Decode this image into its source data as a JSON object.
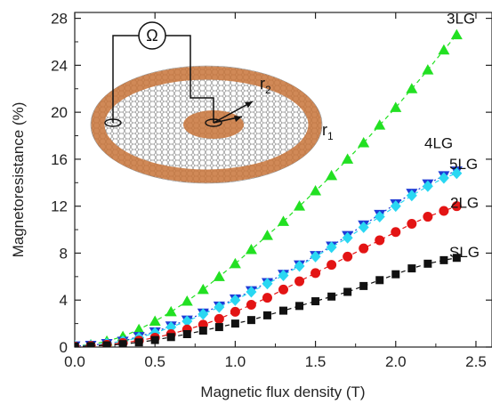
{
  "chart_data": {
    "type": "scatter",
    "xlabel": "Magnetic flux density (T)",
    "ylabel": "Magnetoresistance (%)",
    "xlim": [
      0,
      2.6
    ],
    "ylim": [
      0,
      28.5
    ],
    "xticks": [
      "0.0",
      "0.5",
      "1.0",
      "1.5",
      "2.0",
      "2.5"
    ],
    "yticks": [
      "0",
      "4",
      "8",
      "12",
      "16",
      "20",
      "24",
      "28"
    ],
    "grid": false,
    "legend": "none",
    "series": [
      {
        "name": "3LG",
        "marker": "triangle-up",
        "color": "#22e022",
        "line": "dashed",
        "x": [
          0.0,
          0.1,
          0.2,
          0.3,
          0.4,
          0.5,
          0.6,
          0.7,
          0.8,
          0.9,
          1.0,
          1.1,
          1.2,
          1.3,
          1.4,
          1.5,
          1.6,
          1.7,
          1.8,
          1.9,
          2.0,
          2.1,
          2.2,
          2.3,
          2.38
        ],
        "y": [
          0.1,
          0.2,
          0.5,
          0.9,
          1.5,
          2.2,
          3.0,
          3.9,
          4.9,
          6.0,
          7.1,
          8.3,
          9.5,
          10.7,
          12.0,
          13.3,
          14.6,
          16.0,
          17.4,
          18.9,
          20.4,
          22.0,
          23.6,
          25.3,
          26.6
        ]
      },
      {
        "name": "4LG",
        "marker": "triangle-down",
        "color": "#1f3bd6",
        "line": "dotted",
        "x": [
          0.0,
          0.1,
          0.2,
          0.3,
          0.4,
          0.5,
          0.6,
          0.7,
          0.8,
          0.9,
          1.0,
          1.1,
          1.2,
          1.3,
          1.4,
          1.5,
          1.6,
          1.7,
          1.8,
          1.9,
          2.0,
          2.1,
          2.2,
          2.3,
          2.38
        ],
        "y": [
          0.1,
          0.15,
          0.3,
          0.5,
          0.9,
          1.3,
          1.8,
          2.3,
          2.9,
          3.5,
          4.1,
          4.8,
          5.5,
          6.2,
          7.0,
          7.8,
          8.6,
          9.5,
          10.4,
          11.3,
          12.2,
          13.1,
          13.9,
          14.6,
          15.0
        ]
      },
      {
        "name": "5LG",
        "marker": "diamond",
        "color": "#29d7f2",
        "line": "dashed",
        "x": [
          0.0,
          0.1,
          0.2,
          0.3,
          0.4,
          0.5,
          0.6,
          0.7,
          0.8,
          0.9,
          1.0,
          1.1,
          1.2,
          1.3,
          1.4,
          1.5,
          1.6,
          1.7,
          1.8,
          1.9,
          2.0,
          2.1,
          2.2,
          2.3,
          2.38
        ],
        "y": [
          0.1,
          0.15,
          0.3,
          0.5,
          0.8,
          1.2,
          1.7,
          2.2,
          2.8,
          3.4,
          4.0,
          4.7,
          5.4,
          6.1,
          6.9,
          7.7,
          8.5,
          9.3,
          10.2,
          11.1,
          12.0,
          12.9,
          13.7,
          14.4,
          14.8
        ]
      },
      {
        "name": "2LG",
        "marker": "circle",
        "color": "#e31414",
        "line": "dashed",
        "x": [
          0.0,
          0.1,
          0.2,
          0.3,
          0.4,
          0.5,
          0.6,
          0.7,
          0.8,
          0.9,
          1.0,
          1.1,
          1.2,
          1.3,
          1.4,
          1.5,
          1.6,
          1.7,
          1.8,
          1.9,
          2.0,
          2.1,
          2.2,
          2.3,
          2.38
        ],
        "y": [
          0.05,
          0.1,
          0.2,
          0.35,
          0.55,
          0.8,
          1.1,
          1.5,
          1.9,
          2.4,
          3.0,
          3.6,
          4.2,
          4.9,
          5.6,
          6.3,
          7.0,
          7.7,
          8.4,
          9.1,
          9.8,
          10.5,
          11.1,
          11.6,
          12.0
        ]
      },
      {
        "name": "SLG",
        "marker": "square",
        "color": "#111111",
        "line": "dashed",
        "x": [
          0.0,
          0.1,
          0.2,
          0.3,
          0.4,
          0.5,
          0.6,
          0.7,
          0.8,
          0.9,
          1.0,
          1.1,
          1.2,
          1.3,
          1.4,
          1.5,
          1.6,
          1.7,
          1.8,
          1.9,
          2.0,
          2.1,
          2.2,
          2.3,
          2.38
        ],
        "y": [
          0.05,
          0.08,
          0.15,
          0.25,
          0.4,
          0.6,
          0.85,
          1.1,
          1.4,
          1.7,
          2.0,
          2.3,
          2.7,
          3.1,
          3.5,
          3.9,
          4.3,
          4.7,
          5.2,
          5.7,
          6.2,
          6.7,
          7.1,
          7.4,
          7.6
        ]
      }
    ],
    "inset": {
      "ohm_symbol": "Ω",
      "outer_radius_label": "r",
      "outer_radius_sub": "2",
      "inner_radius_label": "r",
      "inner_radius_sub": "1",
      "ring_color": "#c8743a",
      "lattice_color": "#7a7a7a"
    }
  }
}
